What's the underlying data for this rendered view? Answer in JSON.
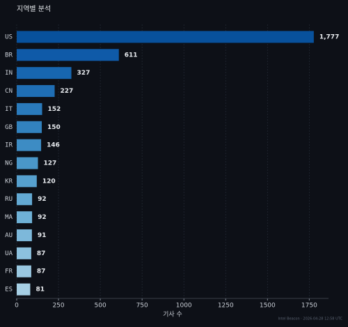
{
  "chart_data": {
    "type": "barh",
    "title": "지역별 분석",
    "xlabel": "기사 수",
    "footer": "Intel Beacon · 2026-04-28 12:58 UTC",
    "categories": [
      "US",
      "BR",
      "IN",
      "CN",
      "IT",
      "GB",
      "IR",
      "NG",
      "KR",
      "RU",
      "MA",
      "AU",
      "UA",
      "FR",
      "ES"
    ],
    "values": [
      1777,
      611,
      327,
      227,
      152,
      150,
      146,
      127,
      120,
      92,
      92,
      91,
      87,
      87,
      81
    ],
    "value_labels": [
      "1,777",
      "611",
      "327",
      "227",
      "152",
      "150",
      "146",
      "127",
      "120",
      "92",
      "92",
      "91",
      "87",
      "87",
      "81"
    ],
    "colors": [
      "#08519c",
      "#0f5aa8",
      "#1766b0",
      "#1f6eb4",
      "#2a7abb",
      "#3282be",
      "#3d8cc4",
      "#4a97c9",
      "#56a0ce",
      "#63a9d3",
      "#6fb1d6",
      "#7db8da",
      "#8cc1de",
      "#9ac8e1",
      "#a6cfe4"
    ],
    "xlim": [
      0,
      1865
    ],
    "xticks": [
      0,
      250,
      500,
      750,
      1000,
      1250,
      1500,
      1750
    ],
    "grid": true
  }
}
